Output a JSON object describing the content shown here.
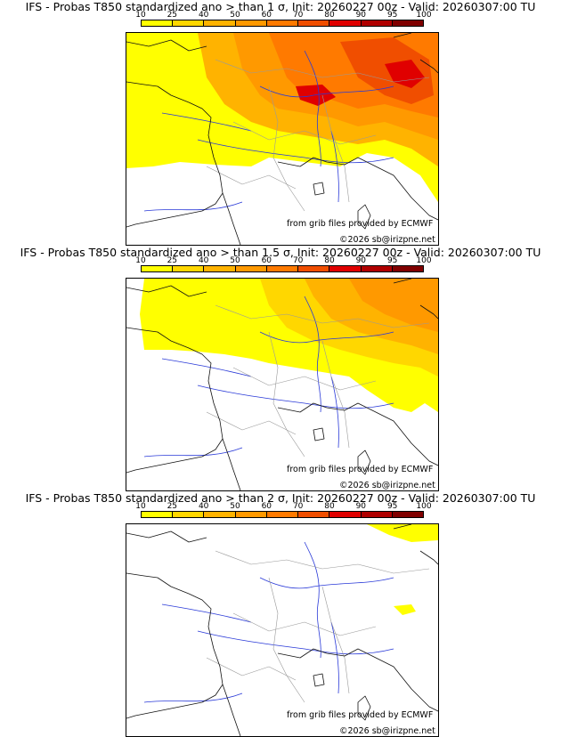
{
  "panels": [
    {
      "title": "IFS - Probas T850  standardized ano > than 1 σ, Init: 20260227 00z - Valid: 20260307:00 TU",
      "coverage": "high"
    },
    {
      "title": "IFS - Probas T850  standardized ano > than 1.5 σ, Init: 20260227 00z - Valid: 20260307:00 TU",
      "coverage": "medium"
    },
    {
      "title": "IFS - Probas T850  standardized ano > than 2 σ, Init: 20260227 00z - Valid: 20260307:00 TU",
      "coverage": "low"
    }
  ],
  "scale": {
    "labels": [
      "10",
      "25",
      "40",
      "50",
      "60",
      "70",
      "80",
      "90",
      "95",
      "100"
    ],
    "colors": [
      "#ffff00",
      "#ffd700",
      "#ffb300",
      "#ff9900",
      "#ff7a00",
      "#f04e00",
      "#e00000",
      "#b00000",
      "#800000"
    ]
  },
  "credits": {
    "source": "from grib files provided by ECMWF",
    "copyright": "©2026 sb@irizpne.net"
  }
}
